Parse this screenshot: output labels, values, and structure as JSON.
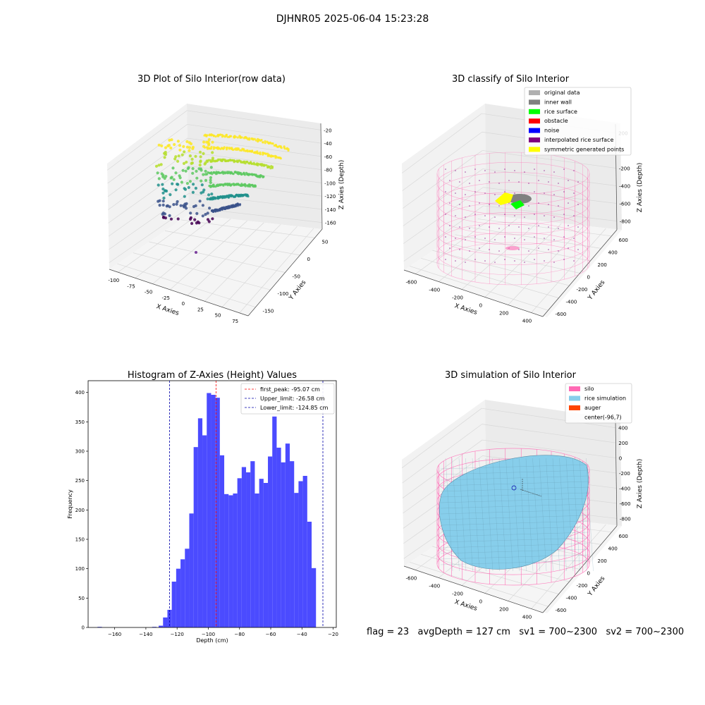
{
  "suptitle": "DJHNR05 2025-06-04 15:23:28",
  "footer": {
    "flag": "flag = 23",
    "avg_depth": "avgDepth = 127 cm",
    "sv1": "sv1 = 700~2300",
    "sv2": "sv2 = 700~2300"
  },
  "colors": {
    "original": "#b0b0b0",
    "inner_wall": "#808080",
    "rice_surface": "#00ff00",
    "obstacle": "#ff0000",
    "noise": "#0000ff",
    "interpolated": "#800080",
    "symmetric": "#ffff00",
    "silo": "#ff69b4",
    "rice_sim": "#87ceeb",
    "auger": "#ff4500",
    "hist_bar": "#4b4bff",
    "first_peak": "#ff0000",
    "limits": "#0000aa"
  },
  "chart_data": [
    {
      "type": "scatter",
      "subtype": "3d",
      "title": "3D Plot of Silo Interior(row data)",
      "xlabel": "X Axies",
      "ylabel": "Y Axies",
      "zlabel": "Z Axies (Depth)",
      "x_ticks": [
        "-100",
        "-75",
        "-50",
        "-25",
        "0",
        "25",
        "50",
        "75"
      ],
      "y_ticks": [
        "-150",
        "-100",
        "-50",
        "0",
        "50"
      ],
      "z_ticks": [
        "-20",
        "-40",
        "-60",
        "-80",
        "-100",
        "-120",
        "-140",
        "-160"
      ],
      "colormap": "viridis"
    },
    {
      "type": "scatter",
      "subtype": "3d",
      "title": "3D classify of Silo Interior",
      "xlabel": "X Axies",
      "ylabel": "Y Axies",
      "zlabel": "Z Axies (Depth)",
      "x_ticks": [
        "-600",
        "-400",
        "-200",
        "0",
        "200",
        "400"
      ],
      "y_ticks": [
        "-600",
        "-400",
        "-200",
        "0",
        "200",
        "400",
        "600"
      ],
      "z_ticks": [
        "200",
        "0",
        "-200",
        "-400",
        "-600",
        "-800"
      ],
      "legend_position": "top-right",
      "legend": [
        "original data",
        "inner wall",
        "rice surface",
        "obstacle",
        "noise",
        "interpolated rice surface",
        "symmetric generated points"
      ]
    },
    {
      "type": "bar",
      "subtype": "histogram",
      "title": "Histogram of Z-Axies (Height) Values",
      "xlabel": "Depth (cm)",
      "ylabel": "Frequency",
      "xlim": [
        -177,
        -18
      ],
      "ylim": [
        0,
        420
      ],
      "x_ticks": [
        -160,
        -140,
        -120,
        -100,
        -80,
        -60,
        -40,
        -20
      ],
      "y_ticks": [
        0,
        50,
        100,
        150,
        200,
        250,
        300,
        350,
        400
      ],
      "bin_width": 2.8,
      "bins": [
        {
          "x": -171.0,
          "y": 1
        },
        {
          "x": -136.0,
          "y": 1
        },
        {
          "x": -131.8,
          "y": 3
        },
        {
          "x": -129.0,
          "y": 17
        },
        {
          "x": -126.2,
          "y": 30
        },
        {
          "x": -123.4,
          "y": 78
        },
        {
          "x": -120.6,
          "y": 100
        },
        {
          "x": -117.8,
          "y": 116
        },
        {
          "x": -115.0,
          "y": 134
        },
        {
          "x": -112.2,
          "y": 194
        },
        {
          "x": -109.4,
          "y": 307
        },
        {
          "x": -106.6,
          "y": 356
        },
        {
          "x": -103.8,
          "y": 327
        },
        {
          "x": -101.0,
          "y": 399
        },
        {
          "x": -98.2,
          "y": 396
        },
        {
          "x": -95.4,
          "y": 391
        },
        {
          "x": -92.6,
          "y": 293
        },
        {
          "x": -89.8,
          "y": 227
        },
        {
          "x": -87.0,
          "y": 225
        },
        {
          "x": -84.2,
          "y": 228
        },
        {
          "x": -81.4,
          "y": 254
        },
        {
          "x": -78.6,
          "y": 273
        },
        {
          "x": -75.8,
          "y": 264
        },
        {
          "x": -73.0,
          "y": 283
        },
        {
          "x": -70.2,
          "y": 228
        },
        {
          "x": -67.4,
          "y": 253
        },
        {
          "x": -64.6,
          "y": 246
        },
        {
          "x": -61.8,
          "y": 291
        },
        {
          "x": -59.0,
          "y": 359
        },
        {
          "x": -56.2,
          "y": 306
        },
        {
          "x": -53.4,
          "y": 281
        },
        {
          "x": -50.6,
          "y": 313
        },
        {
          "x": -47.8,
          "y": 283
        },
        {
          "x": -45.0,
          "y": 229
        },
        {
          "x": -42.2,
          "y": 249
        },
        {
          "x": -39.4,
          "y": 258
        },
        {
          "x": -36.6,
          "y": 180
        },
        {
          "x": -33.8,
          "y": 101
        }
      ],
      "vlines": [
        {
          "label": "first_peak: -95.07 cm",
          "x": -95.07,
          "color": "#ff0000"
        },
        {
          "label": "Upper_limit: -26.58 cm",
          "x": -26.58,
          "color": "#0000aa"
        },
        {
          "label": "Lower_limit: -124.85 cm",
          "x": -124.85,
          "color": "#0000aa"
        }
      ],
      "legend_position": "top-right"
    },
    {
      "type": "scatter",
      "subtype": "3d-surface",
      "title": "3D simulation of Silo Interior",
      "xlabel": "X Axies",
      "ylabel": "Y Axies",
      "zlabel": "Z Axies (Depth)",
      "x_ticks": [
        "-600",
        "-400",
        "-200",
        "0",
        "200",
        "400"
      ],
      "y_ticks": [
        "-600",
        "-400",
        "-200",
        "0",
        "200",
        "400",
        "600"
      ],
      "z_ticks": [
        "400",
        "200",
        "0",
        "-200",
        "-400",
        "-600",
        "-800"
      ],
      "legend_position": "top-right",
      "legend": [
        "silo",
        "rice simulation",
        "auger",
        "center(-96,7)"
      ]
    }
  ]
}
